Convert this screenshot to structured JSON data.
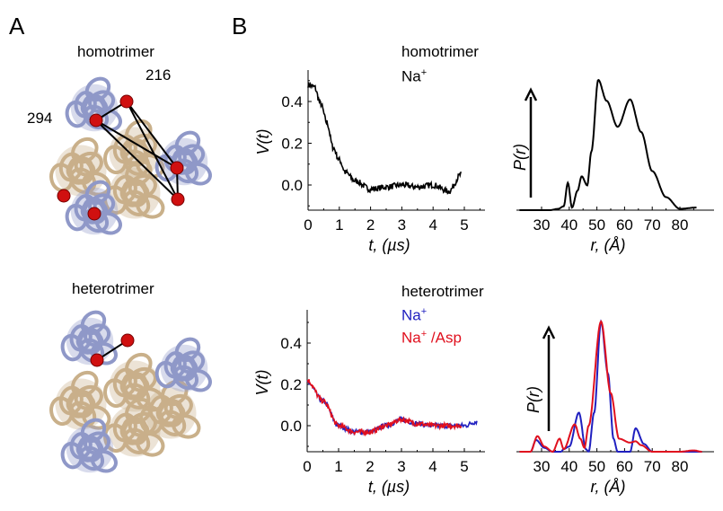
{
  "panels": {
    "a": "A",
    "b": "B"
  },
  "left": {
    "homotrimer_label": "homotrimer",
    "residue_216": "216",
    "residue_294": "294",
    "heterotrimer_label": "heterotrimer"
  },
  "top": {
    "title": "homotrimer",
    "condition": "Na",
    "condition_sup": "+"
  },
  "bottom": {
    "title": "heterotrimer",
    "legend": [
      {
        "label": "Na",
        "sup": "+",
        "color": "#2020c0"
      },
      {
        "label": "Na",
        "sup": "+",
        "suffix": " /Asp",
        "color": "#e0101e"
      }
    ]
  },
  "chart_data": [
    {
      "type": "line",
      "ylabel": "V(t)",
      "xlabel": "t, (µs)",
      "xlim": [
        0,
        5.6
      ],
      "ylim": [
        -0.12,
        0.55
      ],
      "xticks": [
        "0",
        "1",
        "2",
        "3",
        "4",
        "5"
      ],
      "yticks": [
        "0.0",
        "0.2",
        "0.4"
      ],
      "series": [
        {
          "color": "#000000",
          "points": [
            [
              0,
              0.48
            ],
            [
              0.2,
              0.47
            ],
            [
              0.4,
              0.39
            ],
            [
              0.6,
              0.3
            ],
            [
              0.8,
              0.18
            ],
            [
              1.0,
              0.12
            ],
            [
              1.2,
              0.06
            ],
            [
              1.5,
              0.02
            ],
            [
              2,
              -0.02
            ],
            [
              2.5,
              -0.01
            ],
            [
              3,
              0
            ],
            [
              3.5,
              -0.01
            ],
            [
              4,
              0
            ],
            [
              4.5,
              -0.03
            ],
            [
              4.9,
              0.05
            ]
          ]
        }
      ]
    },
    {
      "type": "line",
      "ylabel": "P(r)",
      "xlabel": "r, (Å)",
      "xlim": [
        22,
        88
      ],
      "ylim": [
        0,
        1
      ],
      "xticks": [
        "30",
        "40",
        "50",
        "60",
        "70",
        "80"
      ],
      "series": [
        {
          "color": "#000000",
          "points": [
            [
              22,
              0
            ],
            [
              33,
              0
            ],
            [
              36,
              0.01
            ],
            [
              38,
              0.03
            ],
            [
              39.5,
              0.21
            ],
            [
              41,
              0.02
            ],
            [
              43,
              0.15
            ],
            [
              44.5,
              0.26
            ],
            [
              46.5,
              0.19
            ],
            [
              48,
              0.45
            ],
            [
              50.5,
              1
            ],
            [
              53.5,
              0.84
            ],
            [
              57.5,
              0.64
            ],
            [
              62,
              0.85
            ],
            [
              66,
              0.6
            ],
            [
              70,
              0.3
            ],
            [
              75,
              0.1
            ],
            [
              80,
              0.01
            ],
            [
              86,
              0.02
            ]
          ]
        }
      ]
    },
    {
      "type": "line",
      "ylabel": "V(t)",
      "xlabel": "t, (µs)",
      "xlim": [
        0,
        5.6
      ],
      "ylim": [
        -0.12,
        0.55
      ],
      "xticks": [
        "0",
        "1",
        "2",
        "3",
        "4",
        "5"
      ],
      "yticks": [
        "0.0",
        "0.2",
        "0.4"
      ],
      "series": [
        {
          "name": "Na+",
          "color": "#2020c0",
          "points": [
            [
              0,
              0.21
            ],
            [
              0.5,
              0.12
            ],
            [
              1,
              0.0
            ],
            [
              1.5,
              -0.03
            ],
            [
              2,
              -0.03
            ],
            [
              2.5,
              0
            ],
            [
              3,
              0.03
            ],
            [
              3.5,
              0.01
            ],
            [
              4,
              0
            ],
            [
              5,
              0
            ],
            [
              5.4,
              0.02
            ]
          ]
        },
        {
          "name": "Na+ /Asp",
          "color": "#e0101e",
          "points": [
            [
              0,
              0.22
            ],
            [
              0.5,
              0.12
            ],
            [
              1,
              0.0
            ],
            [
              1.5,
              -0.03
            ],
            [
              2,
              -0.03
            ],
            [
              2.5,
              0
            ],
            [
              3,
              0.03
            ],
            [
              3.5,
              0.01
            ],
            [
              4,
              0
            ],
            [
              4.9,
              0
            ]
          ]
        }
      ]
    },
    {
      "type": "line",
      "ylabel": "P(r)",
      "xlabel": "r, (Å)",
      "xlim": [
        22,
        88
      ],
      "ylim": [
        0,
        1
      ],
      "xticks": [
        "30",
        "40",
        "50",
        "60",
        "70",
        "80"
      ],
      "series": [
        {
          "name": "Na+",
          "color": "#2020c0",
          "points": [
            [
              22,
              0
            ],
            [
              26,
              0
            ],
            [
              28,
              0.09
            ],
            [
              31,
              0.03
            ],
            [
              34,
              0
            ],
            [
              37,
              0
            ],
            [
              38,
              0.02
            ],
            [
              40,
              0.04
            ],
            [
              43.5,
              0.3
            ],
            [
              46,
              0.02
            ],
            [
              47,
              0
            ],
            [
              49,
              0.3
            ],
            [
              51.5,
              1
            ],
            [
              54,
              0.6
            ],
            [
              56,
              0.1
            ],
            [
              57.5,
              0
            ],
            [
              62,
              0
            ],
            [
              64,
              0.18
            ],
            [
              67,
              0.06
            ],
            [
              70,
              0
            ],
            [
              88,
              0
            ]
          ]
        },
        {
          "name": "Na+ /Asp",
          "color": "#e0101e",
          "points": [
            [
              22,
              0
            ],
            [
              26,
              0
            ],
            [
              28.5,
              0.12
            ],
            [
              31,
              0.04
            ],
            [
              34,
              0
            ],
            [
              36.5,
              0.1
            ],
            [
              38,
              0.02
            ],
            [
              42,
              0.21
            ],
            [
              44,
              0.1
            ],
            [
              45.5,
              0.03
            ],
            [
              47,
              0.2
            ],
            [
              51.5,
              1
            ],
            [
              55,
              0.45
            ],
            [
              58,
              0.1
            ],
            [
              62,
              0.07
            ],
            [
              64,
              0.08
            ],
            [
              66,
              0.05
            ],
            [
              70,
              0
            ],
            [
              80,
              0
            ],
            [
              85,
              0.01
            ],
            [
              88,
              0
            ]
          ]
        }
      ]
    }
  ]
}
